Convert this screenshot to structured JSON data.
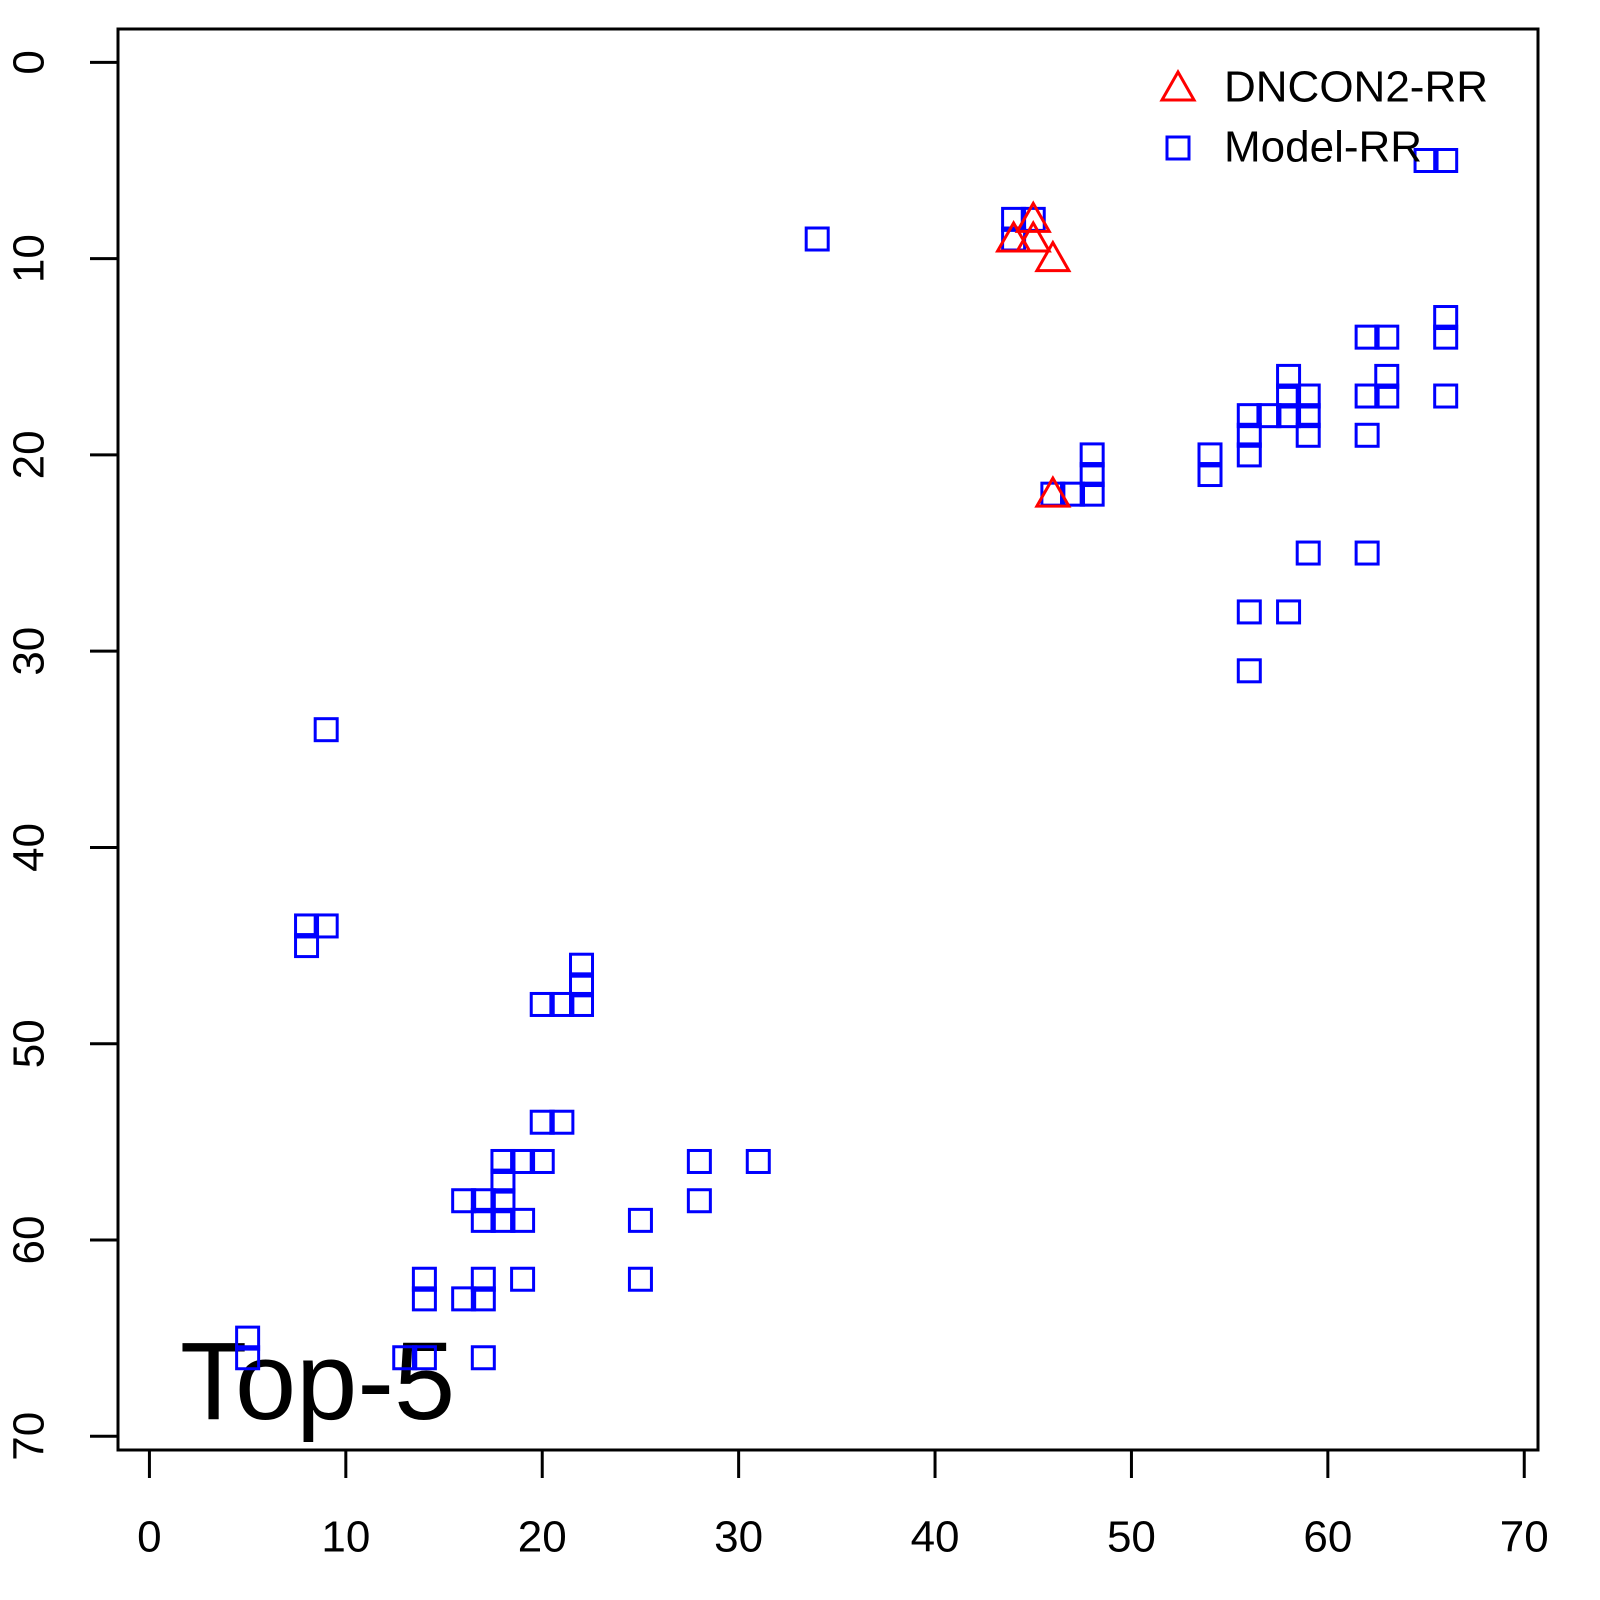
{
  "chart_data": {
    "type": "scatter",
    "annotation": "Top-5",
    "xlim": [
      -1.6,
      70.7
    ],
    "ylim": [
      70.7,
      -1.7
    ],
    "xticks": [
      0,
      10,
      20,
      30,
      40,
      50,
      60,
      70
    ],
    "yticks": [
      0,
      10,
      20,
      30,
      40,
      50,
      60,
      70
    ],
    "legend": "topright",
    "series": [
      {
        "name": "DNCON2-RR",
        "color": "#ff0000",
        "marker": "triangle",
        "x": [
          44,
          45,
          45,
          46,
          46
        ],
        "y": [
          9,
          8,
          9,
          10,
          22
        ]
      },
      {
        "name": "Model-RR",
        "color": "#0000ff",
        "marker": "square",
        "x": [
          34,
          44,
          45,
          44,
          65,
          66,
          66,
          66,
          62,
          63,
          58,
          63,
          58,
          59,
          62,
          63,
          66,
          56,
          57,
          58,
          59,
          56,
          59,
          62,
          48,
          54,
          56,
          48,
          54,
          46,
          47,
          48,
          59,
          62,
          56,
          58,
          56,
          9,
          8,
          9,
          8,
          22,
          22,
          20,
          21,
          22,
          20,
          21,
          18,
          19,
          20,
          28,
          31,
          18,
          16,
          17,
          18,
          28,
          17,
          18,
          19,
          25,
          14,
          17,
          19,
          25,
          14,
          16,
          17,
          5,
          5,
          13,
          14,
          17
        ],
        "y": [
          9,
          8,
          8,
          9,
          5,
          5,
          13,
          14,
          14,
          14,
          16,
          16,
          17,
          17,
          17,
          17,
          17,
          18,
          18,
          18,
          18,
          19,
          19,
          19,
          20,
          20,
          20,
          21,
          21,
          22,
          22,
          22,
          25,
          25,
          28,
          28,
          31,
          34,
          44,
          44,
          45,
          46,
          47,
          48,
          48,
          48,
          54,
          54,
          56,
          56,
          56,
          56,
          56,
          57,
          58,
          58,
          58,
          58,
          59,
          59,
          59,
          59,
          62,
          62,
          62,
          62,
          63,
          63,
          63,
          65,
          66,
          66,
          66,
          66
        ]
      }
    ]
  }
}
